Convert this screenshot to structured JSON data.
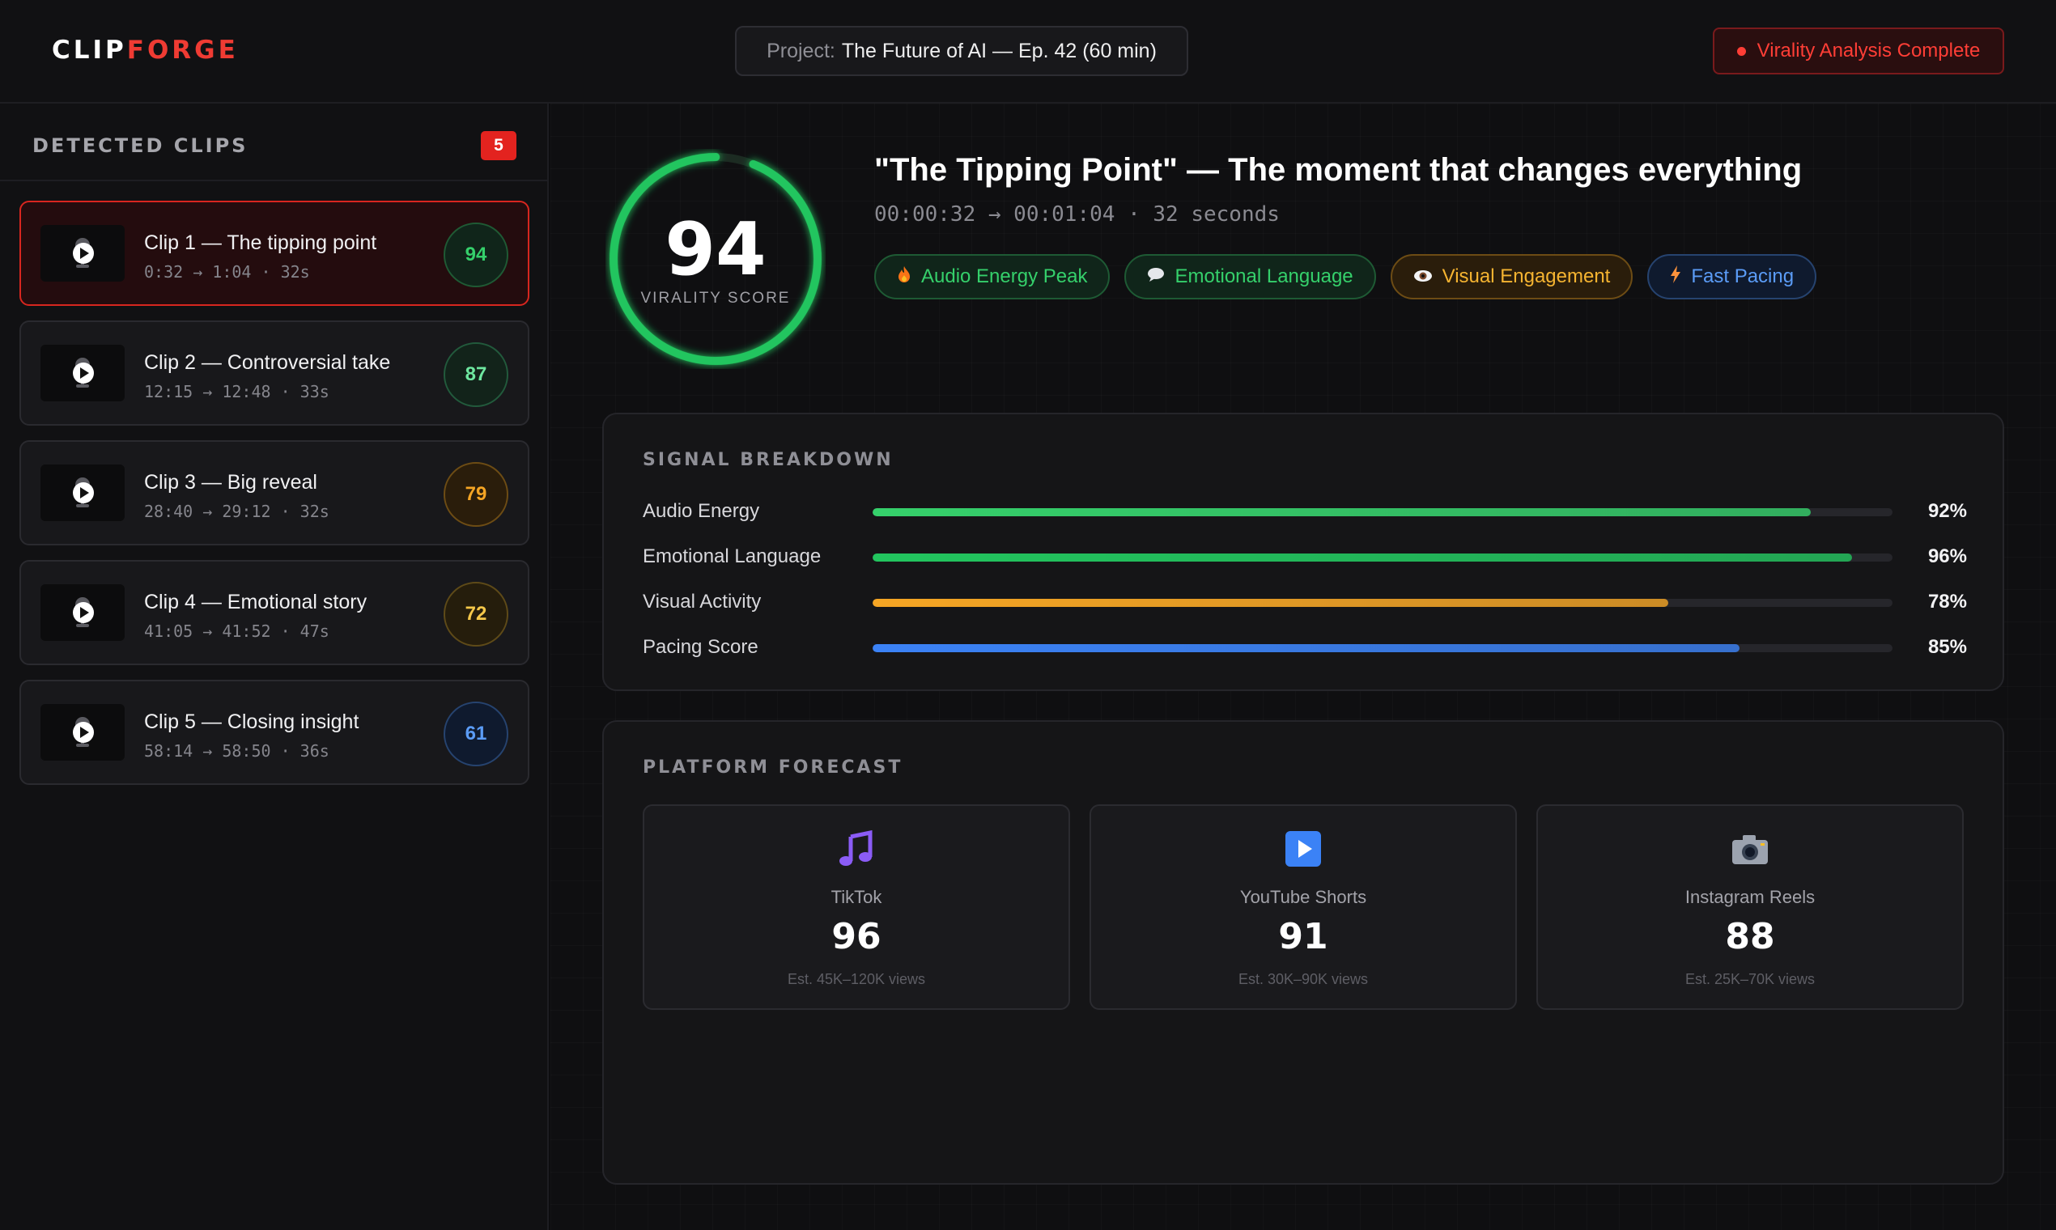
{
  "header": {
    "logo_a": "CLIP",
    "logo_b": "FORGE",
    "project_label": "Project:",
    "project_value": "The Future of AI — Ep. 42 (60 min)",
    "status": "Virality Analysis Complete"
  },
  "sidebar": {
    "title": "DETECTED CLIPS",
    "count": "5",
    "clips": [
      {
        "title": "Clip 1 — The tipping point",
        "time": "0:32 → 1:04 · 32s",
        "score": "94",
        "score_color": "#35d06b"
      },
      {
        "title": "Clip 2 — Controversial take",
        "time": "12:15 → 12:48 · 33s",
        "score": "87",
        "score_color": "#6ee7a0"
      },
      {
        "title": "Clip 3 — Big reveal",
        "time": "28:40 → 29:12 · 32s",
        "score": "79",
        "score_color": "#f5a524"
      },
      {
        "title": "Clip 4 — Emotional story",
        "time": "41:05 → 41:52 · 47s",
        "score": "72",
        "score_color": "#f5c84a"
      },
      {
        "title": "Clip 5 — Closing insight",
        "time": "58:14 → 58:50 · 36s",
        "score": "61",
        "score_color": "#5b9cf6"
      }
    ]
  },
  "detail": {
    "score": "94",
    "score_fraction": 0.94,
    "score_label": "VIRALITY SCORE",
    "headline": "\"The Tipping Point\" — The moment that changes everything",
    "range": "00:00:32 → 00:01:04 · 32 seconds",
    "tags": [
      {
        "label": "Audio Energy Peak",
        "icon": "fire-icon"
      },
      {
        "label": "Emotional Language",
        "icon": "speech-bubble-icon"
      },
      {
        "label": "Visual Engagement",
        "icon": "eye-icon"
      },
      {
        "label": "Fast Pacing",
        "icon": "lightning-icon"
      }
    ]
  },
  "signals": {
    "title": "SIGNAL BREAKDOWN",
    "items": [
      {
        "label": "Audio Energy",
        "value": 92,
        "pct": "92%",
        "color": "#35d06b"
      },
      {
        "label": "Emotional Language",
        "value": 96,
        "pct": "96%",
        "color": "#22c55e"
      },
      {
        "label": "Visual Activity",
        "value": 78,
        "pct": "78%",
        "color": "#f5a524"
      },
      {
        "label": "Pacing Score",
        "value": 85,
        "pct": "85%",
        "color": "#3b82f6"
      }
    ]
  },
  "forecast": {
    "title": "PLATFORM FORECAST",
    "platforms": [
      {
        "name": "TikTok",
        "score": "96",
        "est": "Est. 45K–120K views",
        "icon": "music-note-icon"
      },
      {
        "name": "YouTube Shorts",
        "score": "91",
        "est": "Est. 30K–90K views",
        "icon": "play-button-icon"
      },
      {
        "name": "Instagram Reels",
        "score": "88",
        "est": "Est. 25K–70K views",
        "icon": "camera-icon"
      }
    ]
  }
}
